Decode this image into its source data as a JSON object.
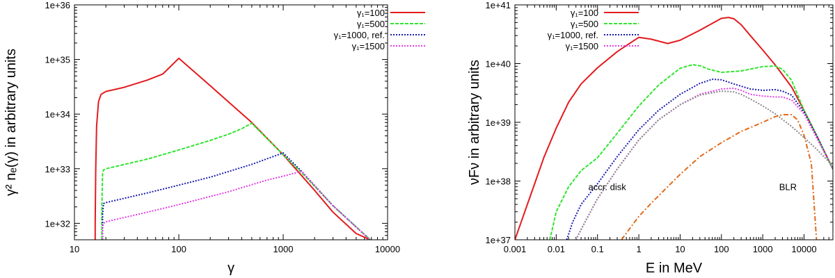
{
  "colors": {
    "red": "#e41a1c",
    "green": "#2ee62e",
    "blue": "#1a1ab0",
    "magenta": "#e23ce2",
    "grey": "#888888",
    "orange": "#e0691a"
  },
  "chart_data": [
    {
      "type": "line",
      "xlabel": "γ",
      "ylabel": "γ² nₑ(γ) in arbitrary units",
      "xlim": [
        10,
        10000
      ],
      "ylim": [
        5e+31,
        1e+36
      ],
      "xscale": "log",
      "yscale": "log",
      "xticks": [
        {
          "value": 10,
          "label": "10"
        },
        {
          "value": 100,
          "label": "100"
        },
        {
          "value": 1000,
          "label": "1000"
        },
        {
          "value": 10000,
          "label": "10000"
        }
      ],
      "yticks": [
        {
          "value": 1e+32,
          "label": "1e+32"
        },
        {
          "value": 1e+33,
          "label": "1e+33"
        },
        {
          "value": 1e+34,
          "label": "1e+34"
        },
        {
          "value": 1e+35,
          "label": "1e+35"
        },
        {
          "value": 1e+36,
          "label": "1e+36"
        }
      ],
      "legend_position": "top-right",
      "series": [
        {
          "name": "γ₁=100",
          "color": "red",
          "dash": "solid",
          "x": [
            15.8,
            15.8,
            16.0,
            16.3,
            17.0,
            18.0,
            20,
            30,
            50,
            70,
            100,
            200,
            500,
            1000,
            2000,
            3000,
            5000,
            6800
          ],
          "y": [
            5e+31,
            1e+32,
            1e+33,
            6e+33,
            1.7e+34,
            2.3e+34,
            2.6e+34,
            3.1e+34,
            4.2e+34,
            5.4e+34,
            1.05e+35,
            3.3e+34,
            7e+33,
            1.8e+33,
            4e+32,
            1.6e+32,
            6.5e+31,
            5e+31
          ]
        },
        {
          "name": "γ₁=500",
          "color": "green",
          "dash": "dashed",
          "x": [
            18.3,
            18.3,
            18.6,
            19,
            20,
            50,
            100,
            200,
            300,
            400,
            500,
            1000,
            1500,
            3000,
            6800
          ],
          "y": [
            5e+31,
            2e+32,
            8e+32,
            9.5e+32,
            1e+33,
            1.5e+33,
            2.2e+33,
            3.3e+33,
            4.3e+33,
            5.4e+33,
            6.8e+33,
            1.8e+33,
            8.5e+32,
            2.1e+32,
            5e+31
          ]
        },
        {
          "name": "γ₁=1000, ref.",
          "color": "blue",
          "dash": "dotted",
          "x": [
            18.6,
            18.6,
            19,
            20,
            50,
            100,
            200,
            500,
            1000,
            1500,
            3000,
            6800
          ],
          "y": [
            5e+31,
            1.5e+32,
            2.3e+32,
            2.4e+32,
            3.6e+32,
            5e+32,
            7e+32,
            1.2e+33,
            1.95e+33,
            9e+32,
            2.1e+32,
            5e+31
          ]
        },
        {
          "name": "γ₁=1500",
          "color": "magenta",
          "dash": "dotted",
          "x": [
            18.6,
            18.6,
            19,
            20,
            50,
            100,
            300,
            700,
            1000,
            1500,
            3000,
            6800
          ],
          "y": [
            5e+31,
            8e+31,
            1e+32,
            1.07e+32,
            1.6e+32,
            2.2e+32,
            3.8e+32,
            6.2e+32,
            7.3e+32,
            9e+32,
            2.1e+32,
            5e+31
          ]
        }
      ]
    },
    {
      "type": "line",
      "xlabel": "E in MeV",
      "ylabel": "νFν in arbitrary units",
      "xlim": [
        0.001,
        50000
      ],
      "ylim": [
        1e+37,
        1e+41
      ],
      "xscale": "log",
      "yscale": "log",
      "xticks": [
        {
          "value": 0.001,
          "label": "0.001"
        },
        {
          "value": 0.01,
          "label": "0.01"
        },
        {
          "value": 0.1,
          "label": "0.1"
        },
        {
          "value": 1,
          "label": "1"
        },
        {
          "value": 10,
          "label": "10"
        },
        {
          "value": 100,
          "label": "100"
        },
        {
          "value": 1000,
          "label": "1000"
        },
        {
          "value": 10000,
          "label": "10000"
        }
      ],
      "yticks": [
        {
          "value": 1e+37,
          "label": "1e+37"
        },
        {
          "value": 1e+38,
          "label": "1e+38"
        },
        {
          "value": 1e+39,
          "label": "1e+39"
        },
        {
          "value": 1e+40,
          "label": "1e+40"
        },
        {
          "value": 1e+41,
          "label": "1e+41"
        }
      ],
      "legend_position": "top-left",
      "annotations": [
        {
          "text": "accr. disk",
          "x": 0.06,
          "y": 7e+37
        },
        {
          "text": "BLR",
          "x": 2500,
          "y": 7e+37
        }
      ],
      "series": [
        {
          "name": "γ₁=100",
          "color": "red",
          "dash": "solid",
          "x": [
            0.001,
            0.002,
            0.005,
            0.01,
            0.02,
            0.04,
            0.1,
            0.3,
            1,
            2,
            5,
            10,
            30,
            100,
            150,
            200,
            300,
            500,
            1000,
            2000,
            5000,
            10000,
            20000,
            50000
          ],
          "y": [
            1e+37,
            4e+37,
            2.5e+38,
            8e+38,
            2.2e+39,
            4.5e+39,
            8.5e+39,
            1.6e+40,
            2.8e+40,
            2.6e+40,
            2.2e+40,
            2.5e+40,
            3.7e+40,
            5.9e+40,
            6.1e+40,
            5.8e+40,
            4.6e+40,
            3e+40,
            1.7e+40,
            9.5e+39,
            4e+39,
            1.6e+39,
            6e+38,
            1.6e+38
          ]
        },
        {
          "name": "γ₁=500",
          "color": "green",
          "dash": "dashed",
          "x": [
            0.007,
            0.01,
            0.02,
            0.04,
            0.1,
            0.3,
            1,
            3,
            10,
            20,
            30,
            50,
            100,
            300,
            1000,
            2000,
            3000,
            5000,
            10000,
            20000,
            50000
          ],
          "y": [
            1e+37,
            3e+37,
            8e+37,
            1.5e+38,
            2.5e+38,
            6.5e+38,
            1.9e+39,
            4.3e+39,
            8.3e+39,
            9.6e+39,
            9.2e+39,
            8e+39,
            7.1e+39,
            7.5e+39,
            8.9e+39,
            9.1e+39,
            8e+39,
            5.2e+39,
            1.6e+39,
            6e+38,
            1.6e+38
          ]
        },
        {
          "name": "γ₁=1000, ref.",
          "color": "blue",
          "dash": "dotted",
          "x": [
            0.018,
            0.025,
            0.04,
            0.1,
            0.3,
            1,
            3,
            10,
            30,
            60,
            100,
            200,
            500,
            1000,
            2000,
            3000,
            5000,
            10000,
            20000,
            50000
          ],
          "y": [
            1e+37,
            2e+37,
            4e+37,
            9e+37,
            2.6e+38,
            7.5e+38,
            1.6e+39,
            3e+39,
            4.6e+39,
            5.4e+39,
            5.3e+39,
            4.5e+39,
            3.7e+39,
            3.5e+39,
            3.6e+39,
            3.4e+39,
            2.9e+39,
            1.5e+39,
            6e+38,
            1.6e+38
          ]
        },
        {
          "name": "γ₁=1500",
          "color": "magenta",
          "dash": "dotted",
          "x": [
            0.03,
            0.04,
            0.1,
            0.3,
            1,
            3,
            10,
            30,
            100,
            200,
            300,
            500,
            1000,
            2000,
            3000,
            5000,
            10000,
            20000,
            50000
          ],
          "y": [
            1e+37,
            1.5e+37,
            5e+37,
            1.6e+38,
            5e+38,
            1.1e+39,
            2e+39,
            3e+39,
            3.7e+39,
            3.8e+39,
            3.5e+39,
            3e+39,
            2.8e+39,
            2.7e+39,
            2.7e+39,
            2.4e+39,
            1.4e+39,
            5.5e+38,
            1.6e+38
          ]
        },
        {
          "name": "accr. disk",
          "color": "grey",
          "dash": "dotted",
          "x": [
            0.03,
            0.04,
            0.1,
            0.3,
            1,
            3,
            10,
            30,
            100,
            200,
            300,
            500,
            1000,
            2000,
            5000,
            10000,
            20000,
            50000
          ],
          "y": [
            1e+37,
            1.5e+37,
            5e+37,
            1.6e+38,
            5e+38,
            1.1e+39,
            2e+39,
            2.9e+39,
            3.4e+39,
            3.3e+39,
            3e+39,
            2.5e+39,
            1.9e+39,
            1.4e+39,
            8.5e+38,
            5.5e+38,
            3.5e+38,
            1.8e+38
          ]
        },
        {
          "name": "BLR",
          "color": "orange",
          "dash": "dashdot",
          "x": [
            0.38,
            0.5,
            1,
            2,
            5,
            10,
            30,
            100,
            300,
            1000,
            2000,
            3000,
            5000,
            7000,
            10000,
            15000,
            20000
          ],
          "y": [
            1e+37,
            1.3e+37,
            2.5e+37,
            4.2e+37,
            8e+37,
            1.3e+38,
            2.6e+38,
            4.5e+38,
            7e+38,
            1e+39,
            1.25e+39,
            1.35e+39,
            1.35e+39,
            1.1e+39,
            6e+38,
            2e+38,
            1e+37
          ]
        }
      ]
    }
  ]
}
